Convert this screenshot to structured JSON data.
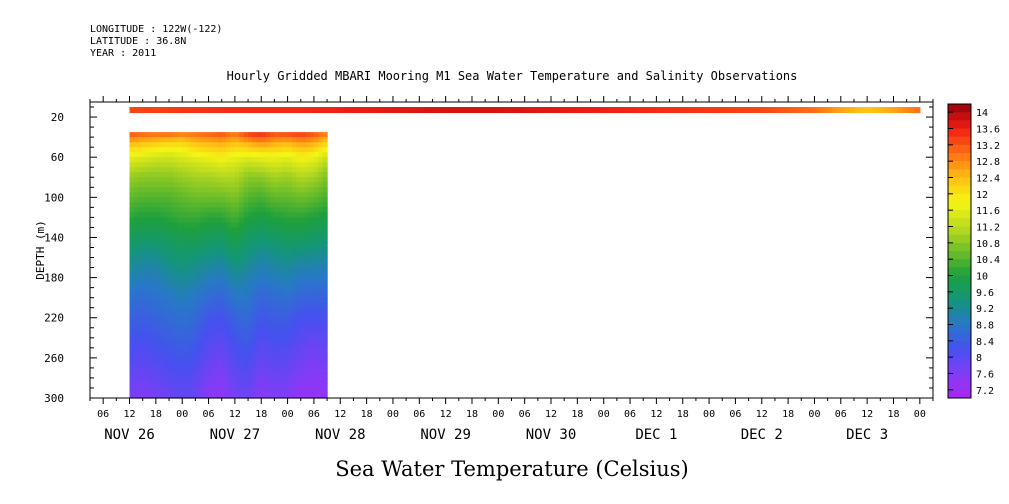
{
  "header": {
    "longitude": "LONGITUDE : 122W(-122)",
    "latitude": "LATITUDE : 36.8N",
    "year": "YEAR : 2011"
  },
  "chart_data": {
    "type": "heatmap",
    "title": "Hourly Gridded MBARI Mooring M1 Sea Water Temperature and Salinity Observations",
    "xlabel": "",
    "ylabel": "DEPTH (m)",
    "caption": "Sea Water Temperature (Celsius)",
    "x_ticks_hours": [
      "06",
      "12",
      "18",
      "00",
      "06",
      "12",
      "18",
      "00",
      "06",
      "12",
      "18",
      "00",
      "06",
      "12",
      "18",
      "00",
      "06",
      "12",
      "18",
      "00",
      "06",
      "12",
      "18",
      "00",
      "06",
      "12",
      "18",
      "00",
      "06",
      "12",
      "18",
      "00"
    ],
    "x_day_labels": [
      "NOV 26",
      "NOV 27",
      "NOV 28",
      "NOV 29",
      "NOV 30",
      "DEC 1",
      "DEC 2",
      "DEC 3"
    ],
    "x_range_hours": [
      3,
      195
    ],
    "y_ticks": [
      20,
      60,
      100,
      140,
      180,
      220,
      260,
      300
    ],
    "ylim": [
      300,
      5
    ],
    "colorbar_levels": [
      14,
      13.6,
      13.2,
      12.8,
      12.4,
      12,
      11.6,
      11.2,
      10.8,
      10.4,
      10,
      9.6,
      9.2,
      8.8,
      8.4,
      8,
      7.6,
      7.2
    ],
    "colorbar_range": [
      7.0,
      14.2
    ],
    "surface_band": {
      "depth_range": [
        10,
        16
      ],
      "time_range_hours": [
        12,
        192
      ],
      "points": [
        [
          12,
          13.3
        ],
        [
          24,
          13.4
        ],
        [
          36,
          13.5
        ],
        [
          48,
          13.5
        ],
        [
          60,
          13.6
        ],
        [
          72,
          13.7
        ],
        [
          84,
          13.8
        ],
        [
          96,
          13.8
        ],
        [
          108,
          13.7
        ],
        [
          120,
          13.6
        ],
        [
          132,
          13.5
        ],
        [
          144,
          13.4
        ],
        [
          156,
          13.3
        ],
        [
          168,
          13.0
        ],
        [
          174,
          12.6
        ],
        [
          180,
          12.3
        ],
        [
          186,
          12.6
        ],
        [
          192,
          13.0
        ]
      ]
    },
    "profile_block": {
      "time_range_hours": [
        12,
        57
      ],
      "depth_range": [
        35,
        300
      ],
      "depths": [
        35,
        45,
        55,
        65,
        80,
        100,
        120,
        140,
        160,
        180,
        200,
        220,
        240,
        260,
        280,
        300
      ],
      "times": [
        12,
        15,
        18,
        21,
        24,
        27,
        30,
        33,
        36,
        39,
        42,
        45,
        48,
        51,
        54,
        57
      ],
      "profiles": [
        [
          13.3,
          12.5,
          11.9,
          11.4,
          10.9,
          10.5,
          10.1,
          9.7,
          9.3,
          9.0,
          8.7,
          8.5,
          8.3,
          8.1,
          7.9,
          7.7
        ],
        [
          13.2,
          12.4,
          11.8,
          11.3,
          10.8,
          10.4,
          10.0,
          9.6,
          9.2,
          8.9,
          8.6,
          8.4,
          8.2,
          8.0,
          7.8,
          7.6
        ],
        [
          13.1,
          12.3,
          11.7,
          11.2,
          10.8,
          10.4,
          10.0,
          9.6,
          9.2,
          8.9,
          8.7,
          8.5,
          8.3,
          8.1,
          7.9,
          7.7
        ],
        [
          13.2,
          12.2,
          11.6,
          11.2,
          10.8,
          10.4,
          10.1,
          9.7,
          9.4,
          9.1,
          8.8,
          8.6,
          8.4,
          8.2,
          8.0,
          7.8
        ],
        [
          13.0,
          12.2,
          11.7,
          11.3,
          10.9,
          10.5,
          10.2,
          9.8,
          9.5,
          9.2,
          8.9,
          8.7,
          8.5,
          8.3,
          8.1,
          7.9
        ],
        [
          13.1,
          12.4,
          11.9,
          11.4,
          11.0,
          10.6,
          10.2,
          9.8,
          9.4,
          9.1,
          8.8,
          8.6,
          8.4,
          8.2,
          8.0,
          7.8
        ],
        [
          13.2,
          12.5,
          12.0,
          11.5,
          11.0,
          10.6,
          10.1,
          9.7,
          9.3,
          8.9,
          8.6,
          8.3,
          8.1,
          7.9,
          7.7,
          7.5
        ],
        [
          13.3,
          12.6,
          12.1,
          11.6,
          11.1,
          10.6,
          10.1,
          9.6,
          9.2,
          8.8,
          8.5,
          8.2,
          8.0,
          7.8,
          7.6,
          7.4
        ],
        [
          13.0,
          12.4,
          11.9,
          11.5,
          11.1,
          10.7,
          10.3,
          9.9,
          9.5,
          9.1,
          8.8,
          8.5,
          8.3,
          8.1,
          7.9,
          7.7
        ],
        [
          13.5,
          12.6,
          11.9,
          11.3,
          10.8,
          10.4,
          10.0,
          9.6,
          9.3,
          9.0,
          8.8,
          8.6,
          8.4,
          8.2,
          8.0,
          7.8
        ],
        [
          13.6,
          12.8,
          12.0,
          11.4,
          10.8,
          10.3,
          9.9,
          9.5,
          9.1,
          8.8,
          8.5,
          8.3,
          8.1,
          7.9,
          7.7,
          7.5
        ],
        [
          13.3,
          12.6,
          12.0,
          11.5,
          11.0,
          10.5,
          10.0,
          9.6,
          9.2,
          8.9,
          8.6,
          8.4,
          8.2,
          8.0,
          7.8,
          7.6
        ],
        [
          13.4,
          12.5,
          11.9,
          11.4,
          10.9,
          10.5,
          10.1,
          9.7,
          9.3,
          9.0,
          8.7,
          8.4,
          8.2,
          8.0,
          7.8,
          7.6
        ],
        [
          13.5,
          12.7,
          12.1,
          11.6,
          11.1,
          10.6,
          10.1,
          9.7,
          9.2,
          8.8,
          8.5,
          8.2,
          8.0,
          7.8,
          7.6,
          7.3
        ],
        [
          13.3,
          12.6,
          12.0,
          11.5,
          11.0,
          10.5,
          10.0,
          9.6,
          9.2,
          8.8,
          8.5,
          8.2,
          7.9,
          7.7,
          7.5,
          7.3
        ],
        [
          13.0,
          12.2,
          11.6,
          11.1,
          10.7,
          10.3,
          9.9,
          9.5,
          9.1,
          8.8,
          8.5,
          8.2,
          8.0,
          7.8,
          7.6,
          7.4
        ]
      ]
    }
  }
}
